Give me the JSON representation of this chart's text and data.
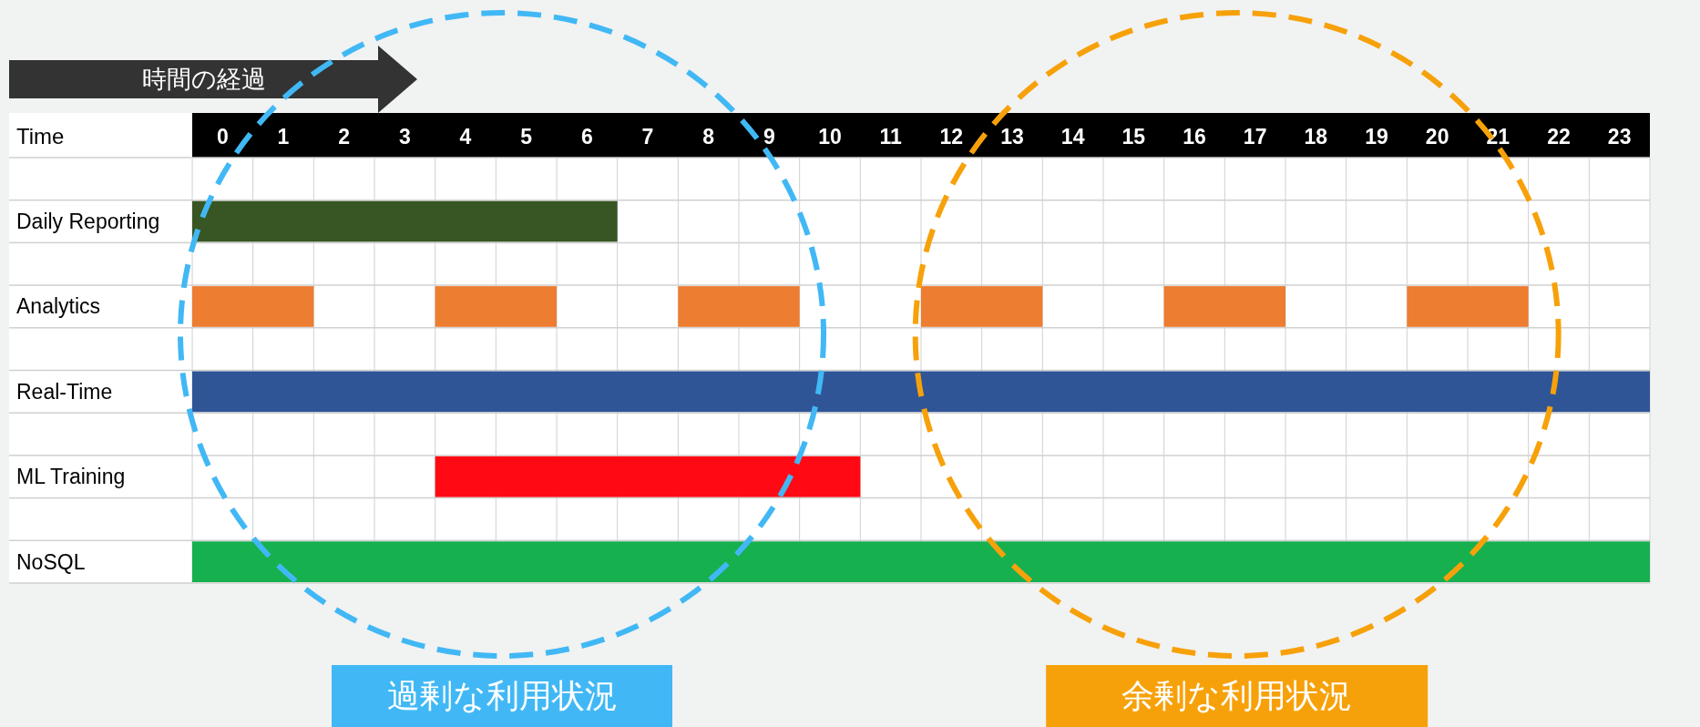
{
  "chart_data": {
    "type": "bar",
    "orientation": "horizontal",
    "xlabel": "Time",
    "categories": [
      null,
      "Daily Reporting",
      null,
      "Analytics",
      null,
      "Real-Time",
      null,
      "ML Training",
      null,
      "NoSQL"
    ],
    "series": [
      {
        "values": [
          null,
          7,
          null,
          2,
          null,
          24,
          null,
          7,
          null,
          24
        ],
        "base": [
          null,
          0,
          null,
          0,
          null,
          0,
          null,
          4,
          null,
          0
        ],
        "colors": [
          null,
          "#375623",
          null,
          "#ed7d31",
          null,
          "#2f5597",
          null,
          "#ff0a14",
          null,
          "#16b04f"
        ]
      },
      {
        "values": [
          null,
          null,
          null,
          2,
          null,
          null,
          null,
          null,
          null,
          null
        ],
        "base": [
          null,
          null,
          null,
          4,
          null,
          null,
          null,
          null,
          null,
          null
        ],
        "color": "#ed7d31"
      },
      {
        "values": [
          null,
          null,
          null,
          2,
          null,
          null,
          null,
          null,
          null,
          null
        ],
        "base": [
          null,
          null,
          null,
          8,
          null,
          null,
          null,
          null,
          null,
          null
        ],
        "color": "#ed7d31"
      },
      {
        "values": [
          null,
          null,
          null,
          2,
          null,
          null,
          null,
          null,
          null,
          null
        ],
        "base": [
          null,
          null,
          null,
          12,
          null,
          null,
          null,
          null,
          null,
          null
        ],
        "color": "#ed7d31"
      },
      {
        "values": [
          null,
          null,
          null,
          2,
          null,
          null,
          null,
          null,
          null,
          null
        ],
        "base": [
          null,
          null,
          null,
          16,
          null,
          null,
          null,
          null,
          null,
          null
        ],
        "color": "#ed7d31"
      },
      {
        "values": [
          null,
          null,
          null,
          2,
          null,
          null,
          null,
          null,
          null,
          null
        ],
        "base": [
          null,
          null,
          null,
          20,
          null,
          null,
          null,
          null,
          null,
          null
        ],
        "color": "#ed7d31"
      }
    ],
    "xlim": [
      0,
      24
    ],
    "xticks": [
      {
        "value": 0.5,
        "label": "0"
      },
      {
        "value": 1.5,
        "label": "1"
      },
      {
        "value": 2.5,
        "label": "2"
      },
      {
        "value": 3.5,
        "label": "3"
      },
      {
        "value": 4.5,
        "label": "4"
      },
      {
        "value": 5.5,
        "label": "5"
      },
      {
        "value": 6.5,
        "label": "6"
      },
      {
        "value": 7.5,
        "label": "7"
      },
      {
        "value": 8.5,
        "label": "8"
      },
      {
        "value": 9.5,
        "label": "9"
      },
      {
        "value": 10.5,
        "label": "10"
      },
      {
        "value": 11.5,
        "label": "11"
      },
      {
        "value": 12.5,
        "label": "12"
      },
      {
        "value": 13.5,
        "label": "13"
      },
      {
        "value": 14.5,
        "label": "14"
      },
      {
        "value": 15.5,
        "label": "15"
      },
      {
        "value": 16.5,
        "label": "16"
      },
      {
        "value": 17.5,
        "label": "17"
      },
      {
        "value": 18.5,
        "label": "18"
      },
      {
        "value": 19.5,
        "label": "19"
      },
      {
        "value": 20.5,
        "label": "20"
      },
      {
        "value": 21.5,
        "label": "21"
      },
      {
        "value": 22.5,
        "label": "22"
      },
      {
        "value": 23.5,
        "label": "23"
      }
    ],
    "grid": true,
    "annotations": [
      "時間の経過",
      "過剰な利用状況",
      "余剰な利用状況"
    ]
  }
}
